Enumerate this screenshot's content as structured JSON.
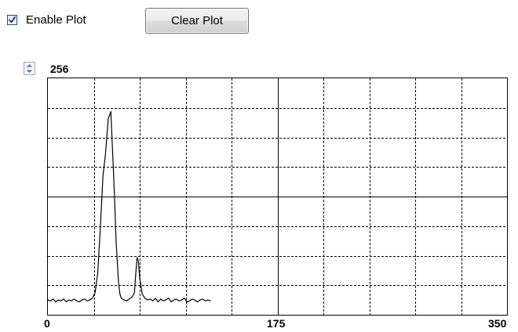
{
  "controls": {
    "enable_plot": {
      "label": "Enable Plot",
      "checked": true
    },
    "clear_button": {
      "label": "Clear Plot"
    }
  },
  "plot": {
    "y_max_value": "256",
    "x_tick_labels": [
      "0",
      "175",
      "350"
    ]
  },
  "chart_data": {
    "type": "line",
    "xlim": [
      0,
      350
    ],
    "ylim": [
      0,
      256
    ],
    "grid": true,
    "x_tick_labels": [
      "0",
      "175",
      "350"
    ],
    "y_max_label": "256",
    "series": [
      {
        "color": "#000000",
        "x": [
          0,
          2,
          4,
          6,
          8,
          10,
          12,
          14,
          16,
          18,
          20,
          22,
          24,
          26,
          28,
          30,
          32,
          34,
          36,
          38,
          40,
          42,
          44,
          46,
          48,
          50,
          51,
          52,
          53,
          54,
          55,
          56,
          58,
          60,
          62,
          64,
          66,
          67,
          68,
          69,
          70,
          72,
          74,
          76,
          78,
          80,
          82,
          84,
          86,
          88,
          90,
          92,
          94,
          96,
          98,
          100,
          102,
          104,
          106,
          108,
          110,
          112,
          114,
          116,
          118,
          120,
          122,
          124
        ],
        "y": [
          16,
          15,
          17,
          14,
          16,
          15,
          17,
          14,
          16,
          15,
          17,
          15,
          14,
          16,
          17,
          15,
          16,
          18,
          24,
          45,
          95,
          150,
          175,
          212,
          220,
          155,
          120,
          80,
          55,
          32,
          22,
          18,
          16,
          15,
          17,
          19,
          24,
          45,
          62,
          58,
          40,
          22,
          18,
          16,
          17,
          15,
          18,
          14,
          17,
          15,
          16,
          18,
          14,
          16,
          17,
          15,
          16,
          18,
          14,
          15,
          17,
          16,
          14,
          16,
          17,
          15,
          16,
          15
        ]
      }
    ]
  }
}
